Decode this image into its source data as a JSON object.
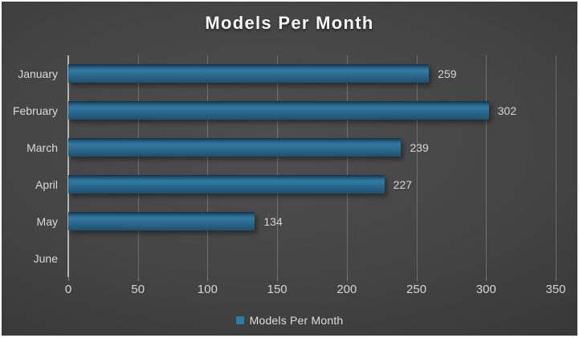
{
  "title": "Models Per Month",
  "legend": {
    "label": "Models Per Month",
    "swatch_color": "#2e7aa7"
  },
  "colors": {
    "background_center": "#4e4e4e",
    "background_edge": "#292929",
    "frame_border": "#ffffff",
    "bar_main": "#2d7097",
    "bar_top": "#142f44",
    "bar_bottom": "#1d5070",
    "text_light": "#d9d9d9",
    "title_text": "#f7f7f7",
    "gridline": "rgba(255,255,255,0.22)",
    "axis_line": "#b5b5b5"
  },
  "chart_data": {
    "type": "bar",
    "orientation": "horizontal",
    "title": "Models Per Month",
    "xlabel": "",
    "ylabel": "",
    "categories": [
      "January",
      "February",
      "March",
      "April",
      "May",
      "June"
    ],
    "series": [
      {
        "name": "Models Per Month",
        "values": [
          259,
          302,
          239,
          227,
          134,
          0
        ]
      }
    ],
    "data_labels": [
      "259",
      "302",
      "239",
      "227",
      "134",
      ""
    ],
    "xlim": [
      0,
      350
    ],
    "xticks": [
      0,
      50,
      100,
      150,
      200,
      250,
      300,
      350
    ],
    "grid": true,
    "legend_position": "bottom"
  }
}
